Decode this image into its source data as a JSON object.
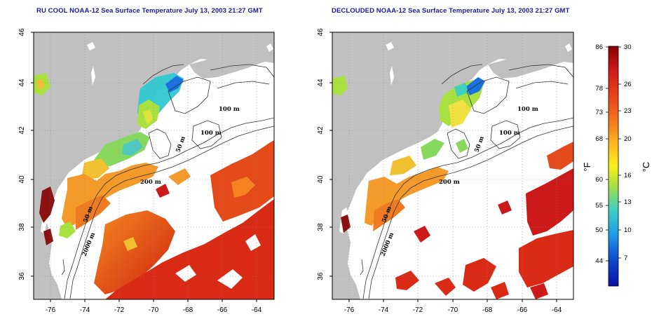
{
  "titles": {
    "left": "RU COOL NOAA-12 Sea Surface Temperature July 13, 2003 21:27 GMT",
    "right": "DECLOUDED NOAA-12 Sea Surface Temperature July 13, 2003 21:27 GMT"
  },
  "map": {
    "lon_ticks": [
      "-76",
      "-74",
      "-72",
      "-70",
      "-68",
      "-66",
      "-64"
    ],
    "lat_ticks": [
      "46",
      "44",
      "42",
      "40",
      "38",
      "36"
    ],
    "grid": "dotted",
    "isobath_labels": [
      "100 m",
      "100 m",
      "50 m",
      "200 m",
      "50 m",
      "2000 m"
    ],
    "land_color": "#c0c0c0",
    "missing_data_color": "#ffffff"
  },
  "colorbar": {
    "fahrenheit_ticks": [
      "86",
      "78",
      "73",
      "68",
      "60",
      "55",
      "50",
      "44"
    ],
    "celsius_ticks": [
      "30",
      "26",
      "23",
      "20",
      "16",
      "13",
      "10",
      "7"
    ],
    "fahrenheit_unit": "°F",
    "celsius_unit": "°C",
    "colors": [
      "#8b0000",
      "#cc1a1a",
      "#e84a1a",
      "#f58220",
      "#ffc020",
      "#f8f020",
      "#a8e040",
      "#40d0c0",
      "#20a0e8",
      "#1050d0",
      "#0a10a0"
    ]
  }
}
